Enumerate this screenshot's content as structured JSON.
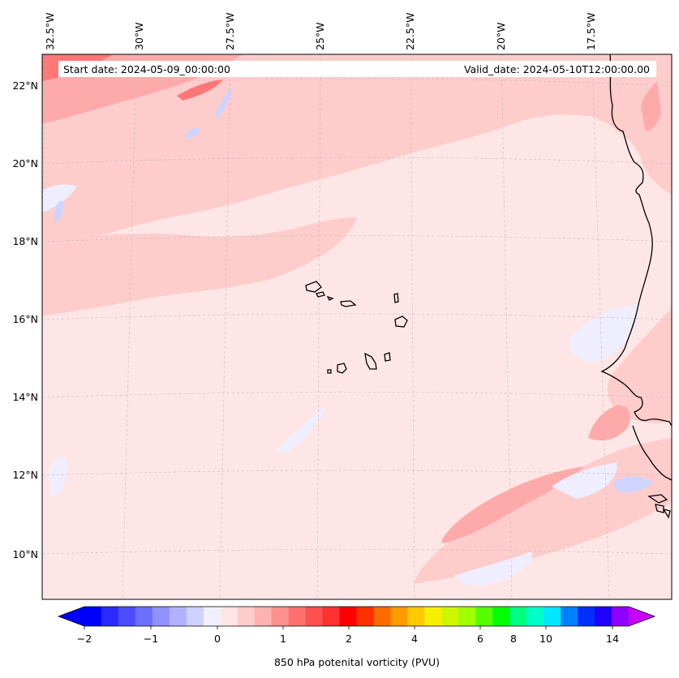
{
  "map": {
    "header": {
      "start_text": "Start date: 2024-05-09_00:00:00",
      "valid_text": "Valid_date: 2024-05-10T12:00:00.00"
    },
    "lon_labels": [
      "32.5°W",
      "30°W",
      "27.5°W",
      "25°W",
      "22.5°W",
      "20°W",
      "17.5°W"
    ],
    "lat_labels": [
      "22°N",
      "20°N",
      "18°N",
      "16°N",
      "14°N",
      "12°N",
      "10°N"
    ],
    "field_colors": {
      "background": "#ffe6e6",
      "light_positive": "#ffcccc",
      "medium_positive": "#ffaaaa",
      "strong_positive": "#ff7777",
      "light_negative": "#eeeeff",
      "medium_negative": "#cfd4ff"
    }
  },
  "colorbar": {
    "colors": [
      "#0000ff",
      "#2a2aff",
      "#4c4cff",
      "#6e6eff",
      "#9090ff",
      "#b0b0ff",
      "#d0d0ff",
      "#f0f0ff",
      "#ffe6e6",
      "#ffcccc",
      "#ffb0b0",
      "#ff9090",
      "#ff7070",
      "#ff5050",
      "#ff3030",
      "#ff0000",
      "#ff3000",
      "#ff6a00",
      "#ff9a00",
      "#ffc800",
      "#f5f000",
      "#d0f500",
      "#a0ff00",
      "#55ff00",
      "#00ff00",
      "#00ff80",
      "#00ffc8",
      "#00e8ff",
      "#0080ff",
      "#0030ff",
      "#2000ff",
      "#9000ff"
    ],
    "low_arrow_color": "#0000ff",
    "high_arrow_color": "#c800ff",
    "tick_labels": [
      "−2",
      "−1",
      "0",
      "1",
      "2",
      "4",
      "6",
      "8",
      "10",
      "14"
    ],
    "label": "850 hPa potenital vorticity (PVU)"
  }
}
